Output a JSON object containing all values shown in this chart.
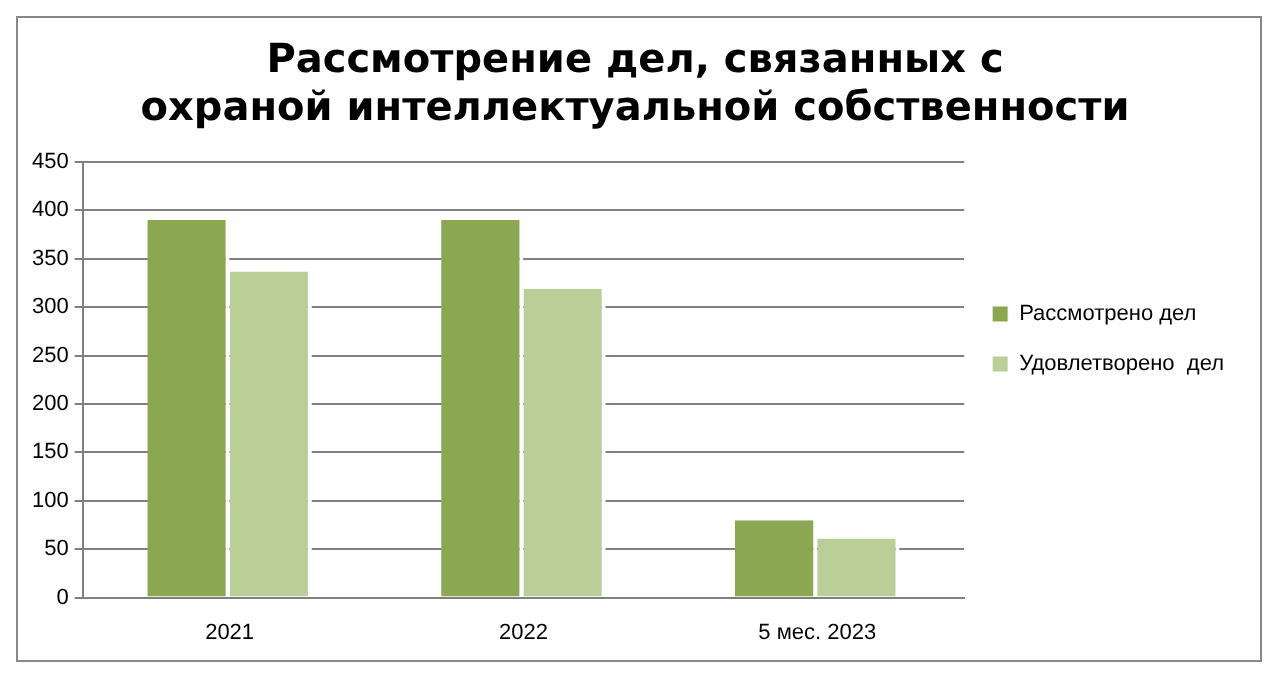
{
  "chart_data": {
    "type": "bar",
    "title": "Рассмотрение дел, связанных с охраной интеллектуальной собственности",
    "categories": [
      "2021",
      "2022",
      "5 мес. 2023"
    ],
    "series": [
      {
        "name": "Рассмотрено дел",
        "color": "#8ba752",
        "values": [
          390,
          390,
          80
        ]
      },
      {
        "name": "Удовлетворено  дел",
        "color": "#b9cf97",
        "values": [
          337,
          319,
          61
        ]
      }
    ],
    "ylim": [
      0,
      450
    ],
    "yticks": [
      0,
      50,
      100,
      150,
      200,
      250,
      300,
      350,
      400,
      450
    ],
    "grid": "y",
    "legend": "right"
  }
}
